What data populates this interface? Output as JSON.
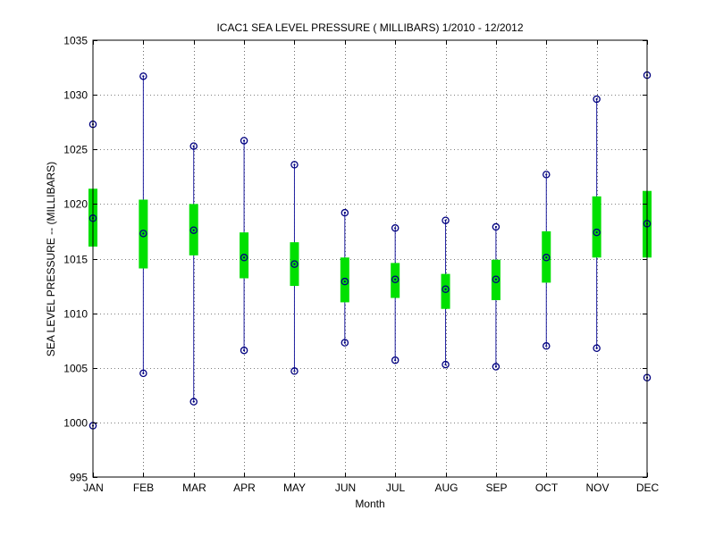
{
  "chart_data": {
    "type": "box",
    "title": "ICAC1  SEA LEVEL PRESSURE ( MILLIBARS) 1/2010 - 12/2012",
    "xlabel": "Month",
    "ylabel": "SEA LEVEL PRESSURE -- (MILLIBARS)",
    "ylim": [
      995,
      1035
    ],
    "yticks": [
      995,
      1000,
      1005,
      1010,
      1015,
      1020,
      1025,
      1030,
      1035
    ],
    "grid": true,
    "categories": [
      "JAN",
      "FEB",
      "MAR",
      "APR",
      "MAY",
      "JUN",
      "JUL",
      "AUG",
      "SEP",
      "OCT",
      "NOV",
      "DEC"
    ],
    "min": [
      999.7,
      1004.5,
      1001.9,
      1006.6,
      1004.7,
      1007.3,
      1005.7,
      1005.3,
      1005.1,
      1007.0,
      1006.8,
      1004.1
    ],
    "q1": [
      1016.1,
      1014.1,
      1015.3,
      1013.2,
      1012.5,
      1011.0,
      1011.4,
      1010.4,
      1011.2,
      1012.8,
      1015.1,
      1015.1
    ],
    "median": [
      1018.7,
      1017.3,
      1017.6,
      1015.1,
      1014.5,
      1012.9,
      1013.1,
      1012.2,
      1013.1,
      1015.1,
      1017.4,
      1018.2
    ],
    "q3": [
      1021.4,
      1020.4,
      1020.0,
      1017.4,
      1016.5,
      1015.1,
      1014.6,
      1013.6,
      1014.9,
      1017.5,
      1020.7,
      1021.2
    ],
    "max": [
      1027.3,
      1031.7,
      1025.3,
      1025.8,
      1023.6,
      1019.2,
      1017.8,
      1018.5,
      1017.9,
      1022.7,
      1029.6,
      1031.8
    ],
    "colors": {
      "whisker": "#1f1fa0",
      "box": "#00e000",
      "marker": "#000080",
      "grid": "#000000",
      "axis": "#000000"
    }
  }
}
